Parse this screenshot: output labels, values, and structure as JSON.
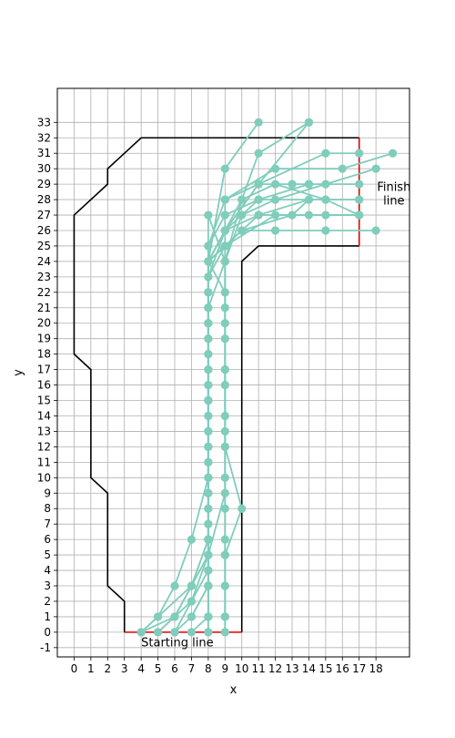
{
  "chart_data": {
    "type": "line",
    "title": "",
    "xlabel": "x",
    "ylabel": "y",
    "xlim": [
      -1,
      20
    ],
    "ylim": [
      -1.6,
      35.2
    ],
    "xticks": [
      0,
      1,
      2,
      3,
      4,
      5,
      6,
      7,
      8,
      9,
      10,
      11,
      12,
      13,
      14,
      15,
      16,
      17,
      18
    ],
    "yticks": [
      -1,
      0,
      1,
      2,
      3,
      4,
      5,
      6,
      7,
      8,
      9,
      10,
      11,
      12,
      13,
      14,
      15,
      16,
      17,
      18,
      19,
      20,
      21,
      22,
      23,
      24,
      25,
      26,
      27,
      28,
      29,
      30,
      31,
      32,
      33
    ],
    "grid": true,
    "colors": {
      "track": "#000000",
      "start_finish": "#e00000",
      "paths": "#7fcdbb"
    },
    "track_outline": [
      [
        [
          3,
          0
        ],
        [
          3,
          2
        ],
        [
          2,
          3
        ],
        [
          2,
          9
        ],
        [
          1,
          10
        ],
        [
          1,
          17
        ],
        [
          0,
          18
        ],
        [
          0,
          27
        ],
        [
          2,
          29
        ],
        [
          2,
          30
        ],
        [
          4,
          32
        ],
        [
          17,
          32
        ]
      ],
      [
        [
          10,
          0
        ],
        [
          10,
          24
        ],
        [
          11,
          25
        ],
        [
          17,
          25
        ]
      ]
    ],
    "start_line": [
      [
        3,
        0
      ],
      [
        10,
        0
      ]
    ],
    "finish_line": [
      [
        17,
        25
      ],
      [
        17,
        32
      ]
    ],
    "annotations": [
      {
        "text": "Starting line",
        "x": 4,
        "y": -0.7
      },
      {
        "text": "Finish\nline",
        "x": 18.2,
        "y": 28.8
      }
    ],
    "paths": [
      [
        [
          4,
          0
        ],
        [
          5,
          1
        ],
        [
          7,
          3
        ],
        [
          8,
          6
        ],
        [
          8,
          10
        ],
        [
          8,
          15
        ],
        [
          8,
          20
        ],
        [
          8,
          24
        ],
        [
          9,
          26
        ],
        [
          11,
          27
        ],
        [
          14,
          27
        ],
        [
          17,
          27
        ]
      ],
      [
        [
          5,
          0
        ],
        [
          6,
          1
        ],
        [
          7,
          3
        ],
        [
          8,
          6
        ],
        [
          8,
          9
        ],
        [
          8,
          13
        ],
        [
          8,
          17
        ],
        [
          8,
          21
        ],
        [
          8,
          24
        ],
        [
          10,
          26
        ],
        [
          12,
          26
        ],
        [
          15,
          26
        ],
        [
          18,
          26
        ]
      ],
      [
        [
          6,
          0
        ],
        [
          7,
          1
        ],
        [
          8,
          3
        ],
        [
          8,
          5
        ],
        [
          8,
          8
        ],
        [
          8,
          12
        ],
        [
          8,
          16
        ],
        [
          8,
          19
        ],
        [
          8,
          22
        ],
        [
          8,
          24
        ],
        [
          9,
          25
        ],
        [
          11,
          27
        ],
        [
          14,
          28
        ],
        [
          17,
          28
        ]
      ],
      [
        [
          7,
          0
        ],
        [
          8,
          1
        ],
        [
          8,
          3
        ],
        [
          8,
          6
        ],
        [
          8,
          10
        ],
        [
          8,
          14
        ],
        [
          8,
          18
        ],
        [
          8,
          22
        ],
        [
          8,
          25
        ],
        [
          9,
          27
        ],
        [
          11,
          28
        ],
        [
          14,
          29
        ],
        [
          17,
          29
        ]
      ],
      [
        [
          8,
          0
        ],
        [
          8,
          1
        ],
        [
          8,
          3
        ],
        [
          8,
          6
        ],
        [
          8,
          9
        ],
        [
          8,
          12
        ],
        [
          8,
          15
        ],
        [
          8,
          19
        ],
        [
          8,
          23
        ],
        [
          9,
          26
        ],
        [
          11,
          28
        ],
        [
          15,
          28
        ],
        [
          17,
          27
        ]
      ],
      [
        [
          9,
          0
        ],
        [
          9,
          1
        ],
        [
          9,
          3
        ],
        [
          9,
          6
        ],
        [
          9,
          10
        ],
        [
          9,
          14
        ],
        [
          9,
          19
        ],
        [
          9,
          24
        ],
        [
          10,
          27
        ],
        [
          12,
          28
        ],
        [
          15,
          29
        ],
        [
          18,
          30
        ]
      ],
      [
        [
          4,
          0
        ],
        [
          6,
          1
        ],
        [
          7,
          2
        ],
        [
          8,
          4
        ],
        [
          8,
          7
        ],
        [
          8,
          11
        ],
        [
          8,
          15
        ],
        [
          8,
          20
        ],
        [
          8,
          25
        ],
        [
          9,
          28
        ],
        [
          12,
          30
        ],
        [
          16,
          30
        ],
        [
          19,
          31
        ]
      ],
      [
        [
          5,
          0
        ],
        [
          6,
          1
        ],
        [
          7,
          3
        ],
        [
          8,
          5
        ],
        [
          8,
          8
        ],
        [
          8,
          12
        ],
        [
          8,
          16
        ],
        [
          8,
          21
        ],
        [
          8,
          24
        ],
        [
          9,
          26
        ],
        [
          11,
          29
        ],
        [
          15,
          31
        ],
        [
          17,
          31
        ]
      ],
      [
        [
          6,
          0
        ],
        [
          7,
          2
        ],
        [
          8,
          5
        ],
        [
          9,
          9
        ],
        [
          9,
          13
        ],
        [
          9,
          17
        ],
        [
          9,
          21
        ],
        [
          9,
          24
        ],
        [
          10,
          28
        ],
        [
          11,
          31
        ],
        [
          14,
          33
        ]
      ],
      [
        [
          4,
          0
        ],
        [
          5,
          1
        ],
        [
          6,
          3
        ],
        [
          7,
          6
        ],
        [
          8,
          10
        ],
        [
          8,
          15
        ],
        [
          8,
          20
        ],
        [
          8,
          24
        ],
        [
          9,
          26
        ],
        [
          11,
          29
        ],
        [
          14,
          33
        ]
      ],
      [
        [
          8,
          0
        ],
        [
          8,
          3
        ],
        [
          8,
          6
        ],
        [
          8,
          9
        ],
        [
          8,
          13
        ],
        [
          8,
          17
        ],
        [
          8,
          21
        ],
        [
          9,
          24
        ],
        [
          9,
          28
        ],
        [
          11,
          29
        ],
        [
          13,
          29
        ],
        [
          14,
          29
        ]
      ],
      [
        [
          9,
          0
        ],
        [
          9,
          1
        ],
        [
          9,
          3
        ],
        [
          9,
          5
        ],
        [
          9,
          8
        ],
        [
          9,
          12
        ],
        [
          9,
          16
        ],
        [
          9,
          20
        ],
        [
          9,
          24
        ],
        [
          8,
          27
        ],
        [
          8,
          24
        ],
        [
          9,
          30
        ],
        [
          11,
          33
        ]
      ],
      [
        [
          9,
          1
        ],
        [
          9,
          5
        ],
        [
          10,
          8
        ],
        [
          9,
          12
        ],
        [
          9,
          17
        ],
        [
          9,
          22
        ],
        [
          8,
          24
        ],
        [
          10,
          26
        ],
        [
          13,
          27
        ],
        [
          14,
          28
        ]
      ],
      [
        [
          7,
          1
        ],
        [
          8,
          3
        ],
        [
          8,
          6
        ],
        [
          8,
          10
        ],
        [
          8,
          14
        ],
        [
          8,
          18
        ],
        [
          8,
          23
        ],
        [
          9,
          25
        ],
        [
          12,
          27
        ],
        [
          15,
          27
        ],
        [
          17,
          27
        ]
      ],
      [
        [
          8,
          1
        ],
        [
          8,
          4
        ],
        [
          8,
          7
        ],
        [
          8,
          11
        ],
        [
          8,
          15
        ],
        [
          8,
          20
        ],
        [
          8,
          24
        ],
        [
          10,
          28
        ],
        [
          12,
          29
        ],
        [
          15,
          28
        ],
        [
          17,
          28
        ]
      ]
    ]
  }
}
